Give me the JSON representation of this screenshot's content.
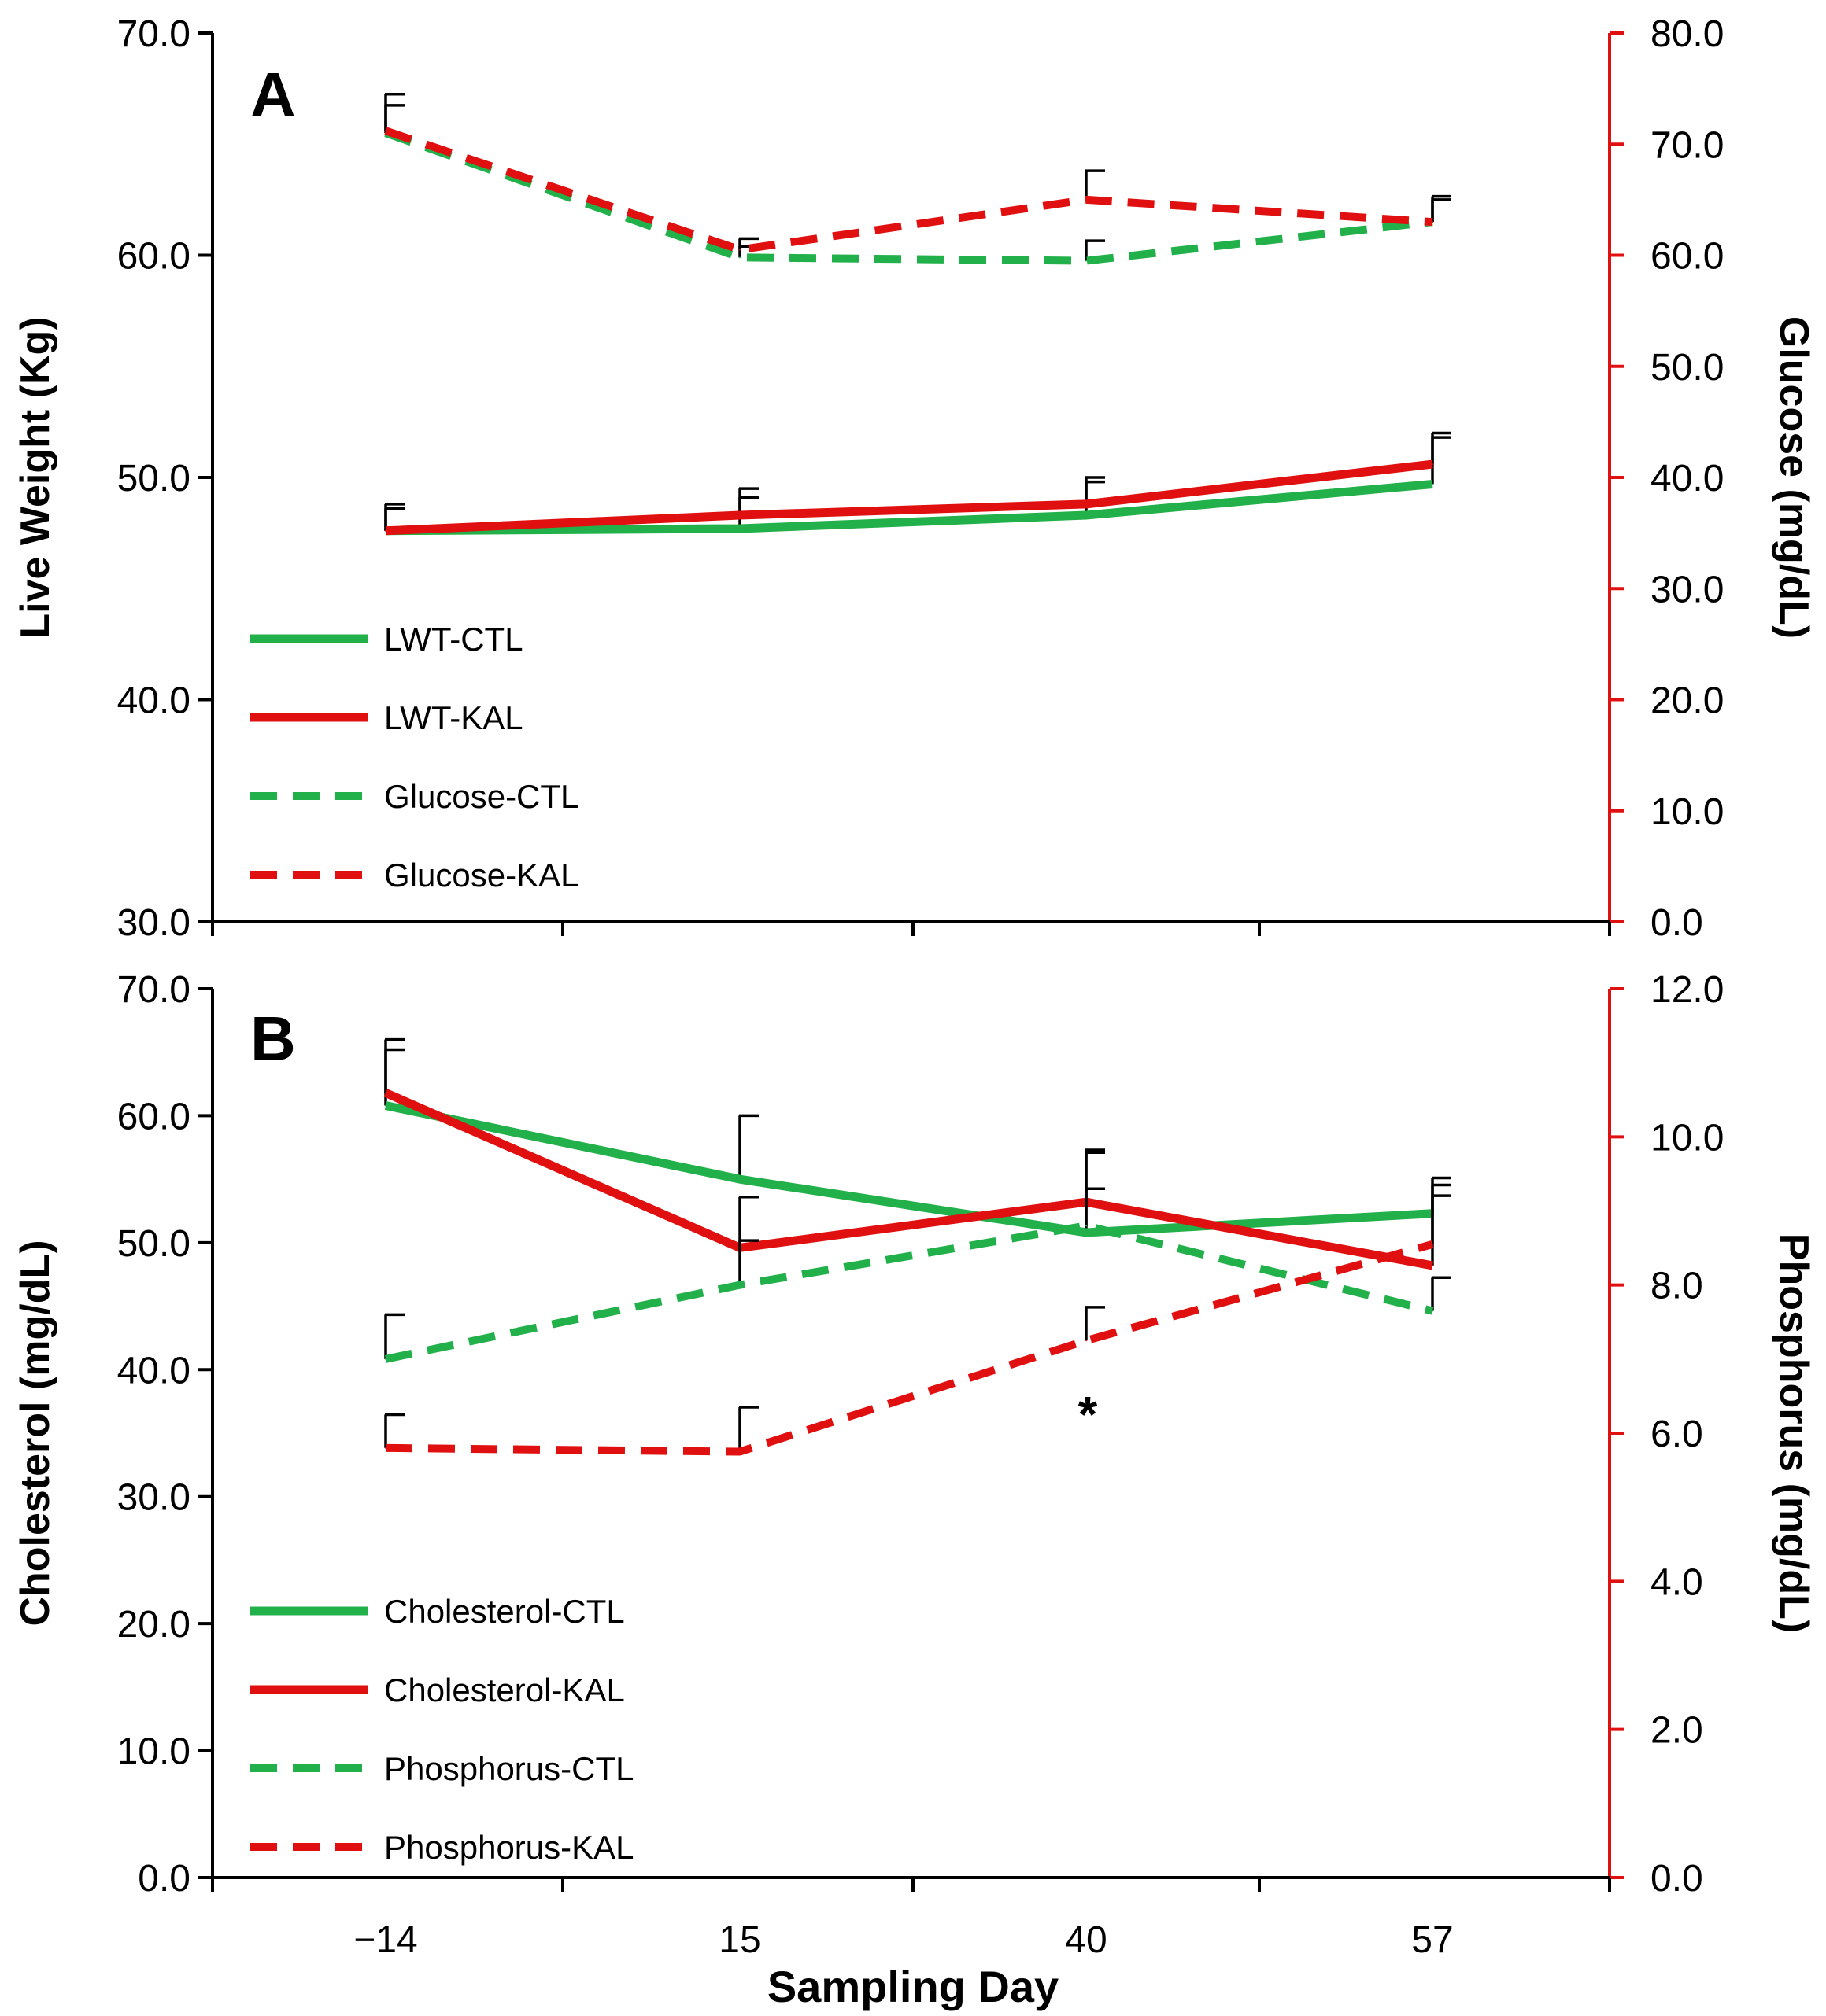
{
  "chart_data": [
    {
      "type": "line",
      "panel_label": "A",
      "ylabel": "Live Weight (Kg)",
      "ylim": [
        30,
        70
      ],
      "yticks": [
        "30.0",
        "40.0",
        "50.0",
        "60.0",
        "70.0"
      ],
      "y2label": "Glucose (mg/dL)",
      "y2lim": [
        0,
        80
      ],
      "y2ticks": [
        "0.0",
        "10.0",
        "20.0",
        "30.0",
        "40.0",
        "50.0",
        "60.0",
        "70.0",
        "80.0"
      ],
      "xlabel": "",
      "x_positions": [
        -14,
        15,
        40,
        57
      ],
      "legend_position": "middle-left",
      "series": [
        {
          "name": "LWT-CTL",
          "axis": "left",
          "color": "#22b04a",
          "dashed": false,
          "values": [
            47.6,
            47.7,
            48.3,
            49.7
          ],
          "errors": [
            1.0,
            1.4,
            1.5,
            2.1
          ]
        },
        {
          "name": "LWT-KAL",
          "axis": "left",
          "color": "#e01010",
          "dashed": false,
          "values": [
            47.6,
            48.3,
            48.8,
            50.6
          ],
          "errors": [
            1.2,
            1.2,
            1.2,
            1.4
          ]
        },
        {
          "name": "Glucose-CTL",
          "axis": "right",
          "color": "#22b04a",
          "dashed": true,
          "values": [
            71.0,
            59.8,
            59.5,
            63.0
          ],
          "errors": [
            2.5,
            1.0,
            1.8,
            2.0
          ]
        },
        {
          "name": "Glucose-KAL",
          "axis": "right",
          "color": "#e01010",
          "dashed": true,
          "values": [
            71.2,
            60.5,
            65.0,
            63.0
          ],
          "errors": [
            3.3,
            1.0,
            2.6,
            2.3
          ]
        }
      ],
      "annotations": []
    },
    {
      "type": "line",
      "panel_label": "B",
      "ylabel": "Cholesterol (mg/dL)",
      "ylim": [
        0,
        70
      ],
      "yticks": [
        "0.0",
        "10.0",
        "20.0",
        "30.0",
        "40.0",
        "50.0",
        "60.0",
        "70.0"
      ],
      "y2label": "Phosphorus (mg/dL)",
      "y2lim": [
        0,
        12
      ],
      "y2ticks": [
        "0.0",
        "2.0",
        "4.0",
        "6.0",
        "8.0",
        "10.0",
        "12.0"
      ],
      "xlabel": "Sampling Day",
      "x_positions": [
        -14,
        15,
        40,
        57
      ],
      "x_ticklabels": [
        "−14",
        "15",
        "40",
        "57"
      ],
      "legend_position": "bottom-left",
      "series": [
        {
          "name": "Cholesterol-CTL",
          "axis": "left",
          "color": "#22b04a",
          "dashed": false,
          "values": [
            60.8,
            55.0,
            50.8,
            52.3
          ],
          "errors": [
            4.4,
            5.0,
            6.5,
            2.8
          ]
        },
        {
          "name": "Cholesterol-KAL",
          "axis": "left",
          "color": "#e01010",
          "dashed": false,
          "values": [
            61.8,
            49.6,
            53.2,
            48.2
          ],
          "errors": [
            4.2,
            4.0,
            3.9,
            5.5
          ]
        },
        {
          "name": "Phosphorus-CTL",
          "axis": "right",
          "color": "#22b04a",
          "dashed": true,
          "values": [
            7.0,
            8.0,
            8.8,
            7.65
          ],
          "errors": [
            0.6,
            0.6,
            0.5,
            0.45
          ]
        },
        {
          "name": "Phosphorus-KAL",
          "axis": "right",
          "color": "#e01010",
          "dashed": true,
          "values": [
            5.8,
            5.75,
            7.25,
            8.55
          ],
          "errors": [
            0.45,
            0.6,
            0.45,
            0.8
          ]
        }
      ],
      "annotations": [
        {
          "text": "*",
          "x": 40,
          "note": "significant"
        }
      ]
    }
  ]
}
